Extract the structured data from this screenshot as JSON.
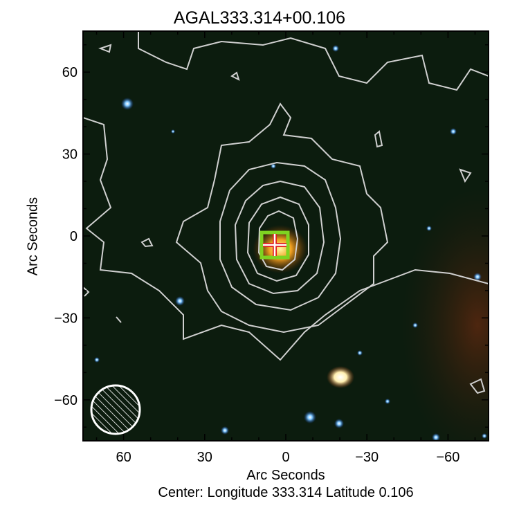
{
  "chart_data": {
    "type": "image",
    "title": "AGAL333.314+00.106",
    "xlabel": "Arc Seconds",
    "ylabel": "Arc Seconds",
    "footer": "Center:  Longitude 333.314 Latitude 0.106",
    "xlim": [
      75,
      -75
    ],
    "ylim": [
      -75,
      75
    ],
    "xticks": [
      60,
      30,
      0,
      -30,
      -60
    ],
    "yticks": [
      60,
      30,
      0,
      -30,
      -60
    ],
    "xtick_labels": [
      "60",
      "30",
      "0",
      "−30",
      "−60"
    ],
    "ytick_labels": [
      "60",
      "30",
      "0",
      "−30",
      "−60"
    ],
    "minor_tick_step": 10,
    "contour_color": "#d0d0d0",
    "marker": {
      "type": "box-with-cross",
      "x": -2,
      "y": 0,
      "box_color": "#7ed321",
      "cross_color": "#e02020"
    },
    "beam": {
      "type": "hatched-circle",
      "x": 62,
      "y": -62
    }
  }
}
